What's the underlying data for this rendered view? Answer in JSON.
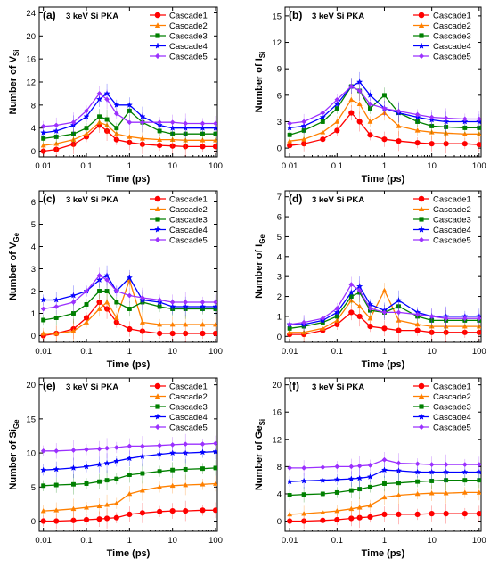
{
  "figure": {
    "time_ticks": [
      "0.01",
      "0.1",
      "1",
      "10",
      "100"
    ],
    "x_axis_label": "Time (ps)",
    "legend": [
      "Cascade1",
      "Cascade2",
      "Cascade3",
      "Cascade4",
      "Cascade5"
    ],
    "series_colors": [
      "#ff0000",
      "#ff8000",
      "#008000",
      "#0000ff",
      "#9b30ff"
    ],
    "series_markers": [
      "circle",
      "triangle-up",
      "square",
      "star",
      "diamond"
    ],
    "panels": [
      {
        "tag": "(a)",
        "subtitle": "3 keV Si PKA",
        "ylabel_main": "Number of V",
        "ylabel_sub": "Si",
        "ylim": [
          -1,
          25
        ],
        "yticks": [
          0,
          4,
          8,
          12,
          16,
          20,
          24
        ]
      },
      {
        "tag": "(b)",
        "subtitle": "3 keV Si PKA",
        "ylabel_main": "Number of I",
        "ylabel_sub": "Si",
        "ylim": [
          -1,
          16
        ],
        "yticks": [
          0,
          3,
          6,
          9,
          12,
          15
        ]
      },
      {
        "tag": "(c)",
        "subtitle": "3 keV Si PKA",
        "ylabel_main": "Number of V",
        "ylabel_sub": "Ge",
        "ylim": [
          -0.3,
          6.5
        ],
        "yticks": [
          0,
          1,
          2,
          3,
          4,
          5,
          6
        ]
      },
      {
        "tag": "(d)",
        "subtitle": "3 keV Si PKA",
        "ylabel_main": "Number of I",
        "ylabel_sub": "Ge",
        "ylim": [
          -0.3,
          7.3
        ],
        "yticks": [
          0,
          1,
          2,
          3,
          4,
          5,
          6,
          7
        ]
      },
      {
        "tag": "(e)",
        "subtitle": "3 keV Si PKA",
        "ylabel_main": "Number of Si",
        "ylabel_sub": "Ge",
        "ylim": [
          -1.5,
          21
        ],
        "yticks": [
          0,
          5,
          10,
          15,
          20
        ]
      },
      {
        "tag": "(f)",
        "subtitle": "3 keV Si PKA",
        "ylabel_main": "Number of Ge",
        "ylabel_sub": "Si",
        "ylim": [
          -1.5,
          21
        ],
        "yticks": [
          0,
          4,
          8,
          12,
          16,
          20
        ]
      }
    ]
  },
  "chart_data": [
    {
      "type": "line",
      "title": "(a) 3 keV Si PKA",
      "xlabel": "Time (ps)",
      "ylabel": "Number of V_Si",
      "xscale": "log",
      "xlim": [
        0.008,
        110
      ],
      "ylim": [
        -1,
        25
      ],
      "x": [
        0.01,
        0.02,
        0.05,
        0.1,
        0.2,
        0.3,
        0.5,
        1,
        2,
        5,
        10,
        20,
        50,
        100
      ],
      "series": [
        {
          "name": "Cascade1",
          "values": [
            0,
            0.3,
            1.2,
            2.5,
            4.5,
            3.5,
            2.0,
            1.5,
            1.2,
            1.0,
            0.9,
            0.8,
            0.8,
            0.8
          ]
        },
        {
          "name": "Cascade2",
          "values": [
            1,
            1.3,
            2.0,
            3.0,
            5.0,
            4.5,
            3.0,
            2.5,
            2.2,
            2.0,
            2.0,
            1.9,
            1.9,
            1.9
          ]
        },
        {
          "name": "Cascade3",
          "values": [
            2.2,
            2.5,
            3.0,
            4.0,
            6.0,
            5.5,
            4.0,
            7.0,
            5.0,
            3.5,
            3.0,
            3.0,
            3.0,
            3.0
          ]
        },
        {
          "name": "Cascade4",
          "values": [
            3.2,
            3.5,
            4.5,
            6.0,
            9.0,
            10.0,
            8.0,
            8.0,
            6.0,
            4.5,
            4.0,
            4.0,
            4.0,
            4.0
          ]
        },
        {
          "name": "Cascade5",
          "values": [
            4.3,
            4.5,
            5.0,
            7.0,
            10.0,
            9.0,
            6.5,
            5.0,
            5.0,
            5.0,
            5.0,
            4.8,
            4.8,
            4.8
          ]
        }
      ]
    },
    {
      "type": "line",
      "title": "(b) 3 keV Si PKA",
      "xlabel": "Time (ps)",
      "ylabel": "Number of I_Si",
      "xscale": "log",
      "xlim": [
        0.008,
        110
      ],
      "ylim": [
        -1,
        16
      ],
      "x": [
        0.01,
        0.02,
        0.05,
        0.1,
        0.2,
        0.3,
        0.5,
        1,
        2,
        5,
        10,
        20,
        50,
        100
      ],
      "series": [
        {
          "name": "Cascade1",
          "values": [
            0.3,
            0.5,
            1.0,
            2.0,
            4.0,
            3.0,
            1.5,
            1.0,
            0.8,
            0.6,
            0.5,
            0.5,
            0.5,
            0.4
          ]
        },
        {
          "name": "Cascade2",
          "values": [
            0.8,
            1.0,
            1.8,
            3.0,
            5.5,
            5.0,
            3.0,
            4.0,
            2.5,
            2.0,
            1.8,
            1.7,
            1.6,
            1.6
          ]
        },
        {
          "name": "Cascade3",
          "values": [
            1.5,
            2.0,
            3.0,
            4.5,
            7.0,
            6.5,
            4.5,
            6.0,
            4.0,
            3.0,
            2.5,
            2.4,
            2.3,
            2.3
          ]
        },
        {
          "name": "Cascade4",
          "values": [
            2.3,
            2.5,
            3.5,
            5.0,
            7.0,
            7.5,
            6.0,
            4.5,
            4.0,
            3.5,
            3.2,
            3.0,
            3.0,
            3.0
          ]
        },
        {
          "name": "Cascade5",
          "values": [
            2.8,
            3.0,
            4.0,
            5.5,
            7.0,
            6.5,
            5.0,
            4.5,
            4.2,
            3.8,
            3.5,
            3.4,
            3.3,
            3.3
          ]
        }
      ]
    },
    {
      "type": "line",
      "title": "(c) 3 keV Si PKA",
      "xlabel": "Time (ps)",
      "ylabel": "Number of V_Ge",
      "xscale": "log",
      "xlim": [
        0.008,
        110
      ],
      "ylim": [
        -0.3,
        6.5
      ],
      "x": [
        0.01,
        0.02,
        0.05,
        0.1,
        0.2,
        0.3,
        0.5,
        1,
        2,
        5,
        10,
        20,
        50,
        100
      ],
      "series": [
        {
          "name": "Cascade1",
          "values": [
            0,
            0.1,
            0.3,
            0.8,
            1.5,
            1.2,
            0.6,
            0.3,
            0.2,
            0.1,
            0.1,
            0.1,
            0.1,
            0.1
          ]
        },
        {
          "name": "Cascade2",
          "values": [
            0.1,
            0.1,
            0.2,
            0.6,
            1.2,
            1.5,
            0.8,
            2.5,
            0.6,
            0.5,
            0.5,
            0.5,
            0.5,
            0.5
          ]
        },
        {
          "name": "Cascade3",
          "values": [
            0.7,
            0.8,
            1.0,
            1.4,
            2.0,
            2.0,
            1.5,
            1.2,
            1.5,
            1.3,
            1.2,
            1.2,
            1.2,
            1.2
          ]
        },
        {
          "name": "Cascade4",
          "values": [
            1.6,
            1.6,
            1.8,
            2.0,
            2.5,
            2.7,
            2.0,
            2.6,
            1.6,
            1.5,
            1.3,
            1.3,
            1.3,
            1.3
          ]
        },
        {
          "name": "Cascade5",
          "values": [
            1.2,
            1.3,
            1.5,
            2.0,
            2.7,
            2.5,
            2.0,
            1.8,
            1.7,
            1.6,
            1.5,
            1.5,
            1.5,
            1.5
          ]
        }
      ]
    },
    {
      "type": "line",
      "title": "(d) 3 keV Si PKA",
      "xlabel": "Time (ps)",
      "ylabel": "Number of I_Ge",
      "xscale": "log",
      "xlim": [
        0.008,
        110
      ],
      "ylim": [
        -0.3,
        7.3
      ],
      "x": [
        0.01,
        0.02,
        0.05,
        0.1,
        0.2,
        0.3,
        0.5,
        1,
        2,
        5,
        10,
        20,
        50,
        100
      ],
      "series": [
        {
          "name": "Cascade1",
          "values": [
            0.1,
            0.1,
            0.3,
            0.6,
            1.2,
            1.0,
            0.5,
            0.4,
            0.3,
            0.3,
            0.2,
            0.2,
            0.2,
            0.2
          ]
        },
        {
          "name": "Cascade2",
          "values": [
            0.2,
            0.2,
            0.4,
            0.8,
            1.8,
            1.5,
            0.9,
            2.3,
            0.8,
            0.6,
            0.5,
            0.5,
            0.5,
            0.5
          ]
        },
        {
          "name": "Cascade3",
          "values": [
            0.4,
            0.5,
            0.7,
            1.0,
            2.0,
            2.2,
            1.3,
            1.2,
            1.5,
            1.0,
            0.8,
            0.8,
            0.8,
            0.8
          ]
        },
        {
          "name": "Cascade4",
          "values": [
            0.6,
            0.6,
            0.8,
            1.2,
            2.2,
            2.5,
            1.6,
            1.3,
            1.8,
            1.2,
            1.0,
            1.0,
            1.0,
            1.0
          ]
        },
        {
          "name": "Cascade5",
          "values": [
            0.6,
            0.7,
            0.9,
            1.4,
            2.6,
            2.3,
            1.4,
            1.2,
            1.2,
            1.1,
            1.0,
            0.9,
            0.9,
            0.9
          ]
        }
      ]
    },
    {
      "type": "line",
      "title": "(e) 3 keV Si PKA",
      "xlabel": "Time (ps)",
      "ylabel": "Number of Si_Ge",
      "xscale": "log",
      "xlim": [
        0.008,
        110
      ],
      "ylim": [
        -1.5,
        21
      ],
      "x": [
        0.01,
        0.02,
        0.05,
        0.1,
        0.2,
        0.3,
        0.5,
        1,
        2,
        5,
        10,
        20,
        50,
        100
      ],
      "series": [
        {
          "name": "Cascade1",
          "values": [
            0,
            0,
            0.1,
            0.2,
            0.3,
            0.4,
            0.5,
            1.0,
            1.2,
            1.4,
            1.5,
            1.5,
            1.6,
            1.6
          ]
        },
        {
          "name": "Cascade2",
          "values": [
            1.5,
            1.6,
            1.8,
            2.0,
            2.2,
            2.4,
            2.6,
            4.0,
            4.5,
            5.0,
            5.2,
            5.3,
            5.4,
            5.5
          ]
        },
        {
          "name": "Cascade3",
          "values": [
            5.2,
            5.3,
            5.4,
            5.5,
            5.8,
            6.0,
            6.2,
            6.8,
            7.0,
            7.3,
            7.5,
            7.6,
            7.7,
            7.8
          ]
        },
        {
          "name": "Cascade4",
          "values": [
            7.5,
            7.6,
            7.8,
            8.0,
            8.3,
            8.5,
            8.8,
            9.2,
            9.5,
            9.8,
            10.0,
            10.0,
            10.1,
            10.2
          ]
        },
        {
          "name": "Cascade5",
          "values": [
            10.3,
            10.3,
            10.4,
            10.5,
            10.6,
            10.7,
            10.8,
            11.0,
            11.0,
            11.1,
            11.2,
            11.3,
            11.3,
            11.4
          ]
        }
      ]
    },
    {
      "type": "line",
      "title": "(f) 3 keV Si PKA",
      "xlabel": "Time (ps)",
      "ylabel": "Number of Ge_Si",
      "xscale": "log",
      "xlim": [
        0.008,
        110
      ],
      "ylim": [
        -1.5,
        21
      ],
      "x": [
        0.01,
        0.02,
        0.05,
        0.1,
        0.2,
        0.3,
        0.5,
        1,
        2,
        5,
        10,
        20,
        50,
        100
      ],
      "series": [
        {
          "name": "Cascade1",
          "values": [
            0,
            0,
            0.1,
            0.2,
            0.4,
            0.5,
            0.6,
            1.0,
            1.0,
            1.0,
            1.1,
            1.1,
            1.1,
            1.1
          ]
        },
        {
          "name": "Cascade2",
          "values": [
            1.0,
            1.1,
            1.3,
            1.5,
            1.8,
            2.0,
            2.3,
            3.5,
            3.8,
            4.0,
            4.1,
            4.1,
            4.2,
            4.2
          ]
        },
        {
          "name": "Cascade3",
          "values": [
            3.8,
            3.9,
            4.0,
            4.2,
            4.5,
            4.7,
            5.0,
            5.5,
            5.6,
            5.8,
            5.9,
            6.0,
            6.0,
            6.0
          ]
        },
        {
          "name": "Cascade4",
          "values": [
            5.8,
            5.9,
            6.0,
            6.1,
            6.2,
            6.3,
            6.5,
            7.5,
            7.4,
            7.2,
            7.2,
            7.2,
            7.2,
            7.2
          ]
        },
        {
          "name": "Cascade5",
          "values": [
            7.8,
            7.8,
            7.9,
            8.0,
            8.0,
            8.1,
            8.2,
            9.0,
            8.5,
            8.4,
            8.3,
            8.3,
            8.3,
            8.3
          ]
        }
      ]
    }
  ]
}
